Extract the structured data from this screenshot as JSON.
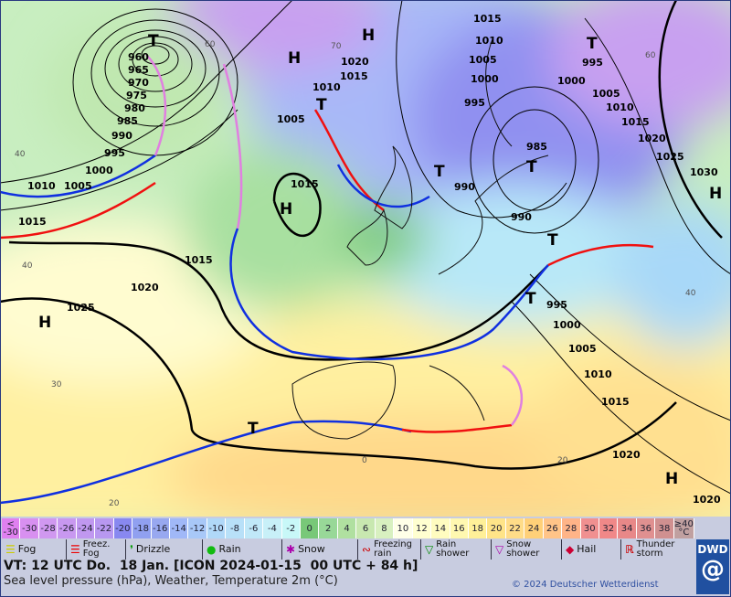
{
  "map": {
    "isobar_labels": [
      "960",
      "965",
      "970",
      "975",
      "980",
      "985",
      "990",
      "995",
      "1000",
      "1010",
      "1005",
      "1015",
      "1015",
      "1020",
      "1025",
      "1015",
      "1010",
      "1005",
      "1020",
      "1015",
      "1015",
      "1010",
      "1005",
      "1000",
      "995",
      "990",
      "985",
      "990",
      "995",
      "1000",
      "1005",
      "1010",
      "1015",
      "1020",
      "1020",
      "1030",
      "1025",
      "1020",
      "1015",
      "1010",
      "1005",
      "1000",
      "995"
    ],
    "temp_labels": [
      "70",
      "60",
      "40",
      "40",
      "30",
      "20",
      "20",
      "0",
      "40",
      "60"
    ],
    "highs": [
      "H",
      "H",
      "H",
      "H",
      "H",
      "H"
    ],
    "lows": [
      "T",
      "T",
      "T",
      "T",
      "T",
      "T",
      "T",
      "T"
    ],
    "colors": {
      "cold_front": "#1030e0",
      "warm_front": "#f01010",
      "occlusion": "#e080e0",
      "isobar": "#000000"
    }
  },
  "scale": [
    {
      "label": "<\n-30",
      "color": "#e080f0"
    },
    {
      "label": "-30",
      "color": "#d890f0"
    },
    {
      "label": "-28",
      "color": "#d098f0"
    },
    {
      "label": "-26",
      "color": "#c898f0"
    },
    {
      "label": "-24",
      "color": "#c098f0"
    },
    {
      "label": "-22",
      "color": "#b898f0"
    },
    {
      "label": "-20",
      "color": "#8888f0"
    },
    {
      "label": "-18",
      "color": "#90a0f0"
    },
    {
      "label": "-16",
      "color": "#98a8f0"
    },
    {
      "label": "-14",
      "color": "#a0b8f8"
    },
    {
      "label": "-12",
      "color": "#a8c8f8"
    },
    {
      "label": "-10",
      "color": "#b0d8f8"
    },
    {
      "label": "-8",
      "color": "#b8e0f8"
    },
    {
      "label": "-6",
      "color": "#c0e8f8"
    },
    {
      "label": "-4",
      "color": "#c8f0f8"
    },
    {
      "label": "-2",
      "color": "#c8f8f8"
    },
    {
      "label": "0",
      "color": "#78c878"
    },
    {
      "label": "2",
      "color": "#98d898"
    },
    {
      "label": "4",
      "color": "#b0e0a0"
    },
    {
      "label": "6",
      "color": "#c8e8b0"
    },
    {
      "label": "8",
      "color": "#d8f0c0"
    },
    {
      "label": "10",
      "color": "#ffffe8"
    },
    {
      "label": "12",
      "color": "#ffffd0"
    },
    {
      "label": "14",
      "color": "#fffcc0"
    },
    {
      "label": "16",
      "color": "#fff8b0"
    },
    {
      "label": "18",
      "color": "#fff098"
    },
    {
      "label": "20",
      "color": "#ffe488"
    },
    {
      "label": "22",
      "color": "#ffdc88"
    },
    {
      "label": "24",
      "color": "#ffd078"
    },
    {
      "label": "26",
      "color": "#ffc488"
    },
    {
      "label": "28",
      "color": "#ffb488"
    },
    {
      "label": "30",
      "color": "#f09090"
    },
    {
      "label": "32",
      "color": "#f08888"
    },
    {
      "label": "34",
      "color": "#e88888"
    },
    {
      "label": "36",
      "color": "#e09090"
    },
    {
      "label": "38",
      "color": "#d09090"
    },
    {
      "label": "≥40\n°C",
      "color": "#c0a0a0"
    }
  ],
  "legend": [
    {
      "label": "Fog",
      "icon": "fog-icon"
    },
    {
      "label": "Freez.\nFog",
      "icon": "freezing-fog-icon"
    },
    {
      "label": "Drizzle",
      "icon": "drizzle-icon"
    },
    {
      "label": "Rain",
      "icon": "rain-icon"
    },
    {
      "label": "Snow",
      "icon": "snow-icon"
    },
    {
      "label": "Freezing\nrain",
      "icon": "freezing-rain-icon"
    },
    {
      "label": "Rain\nshower",
      "icon": "rain-shower-icon"
    },
    {
      "label": "Snow\nshower",
      "icon": "snow-shower-icon"
    },
    {
      "label": "Hail",
      "icon": "hail-icon"
    },
    {
      "label": "Thunder\nstorm",
      "icon": "thunderstorm-icon"
    }
  ],
  "footer": {
    "valid_time": "VT: 12 UTC Do.  18 Jan. [ICON 2024-01-15  00 UTC + 84 h]",
    "subtitle": "Sea level pressure (hPa), Weather, Temperature 2m (°C)",
    "copyright": "© 2024 Deutscher Wetterdienst",
    "logo": "DWD"
  }
}
